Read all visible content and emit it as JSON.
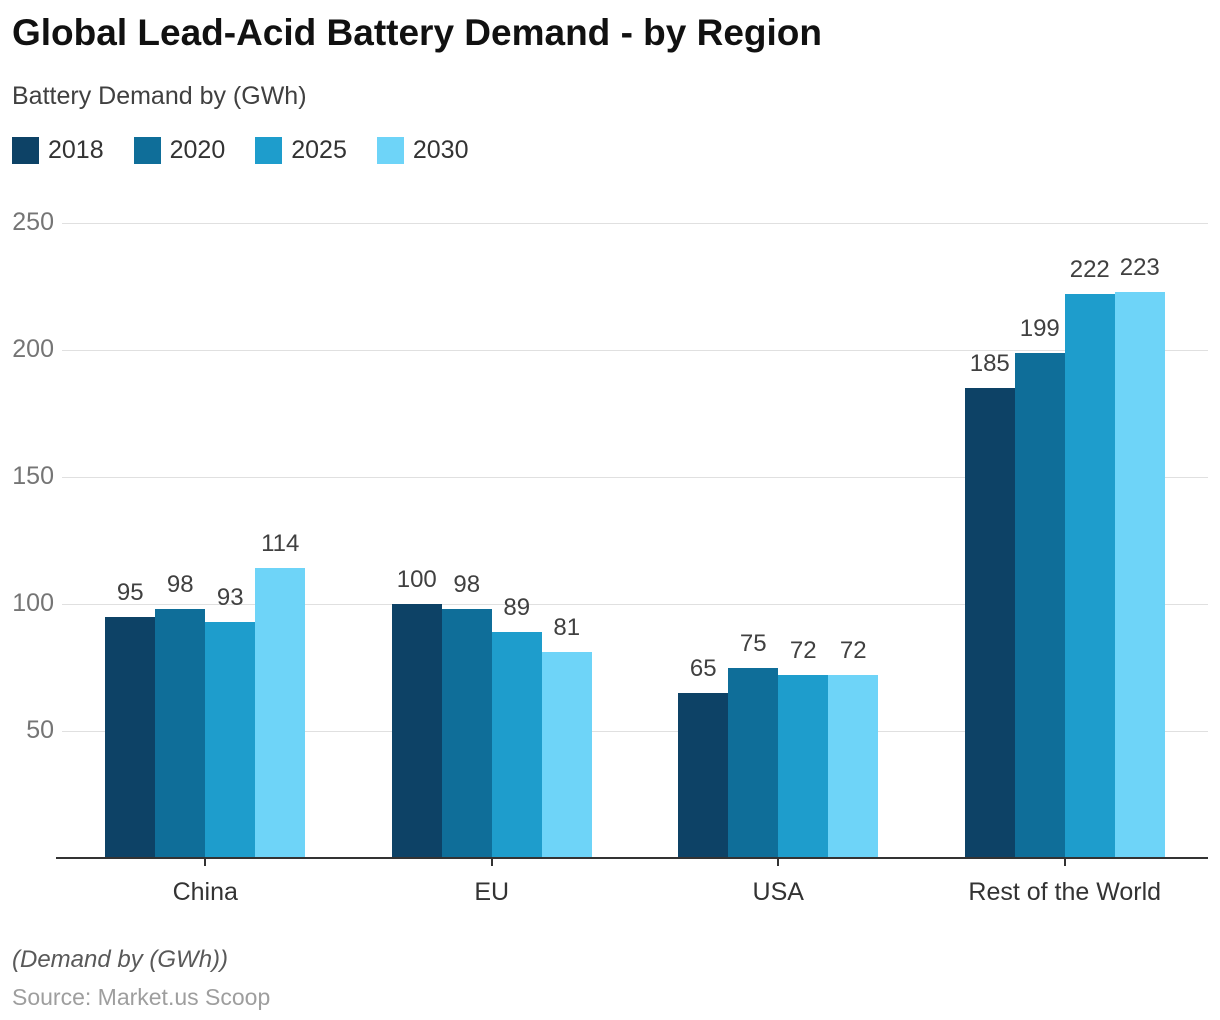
{
  "header": {
    "title": "Global Lead-Acid Battery Demand - by Region",
    "subtitle": "Battery Demand by (GWh)"
  },
  "chart_data": {
    "type": "bar",
    "title": "Global Lead-Acid Battery Demand - by Region",
    "subtitle": "Battery Demand by (GWh)",
    "categories": [
      "China",
      "EU",
      "USA",
      "Rest of the World"
    ],
    "series": [
      {
        "name": "2018",
        "color": "#0d4266",
        "values": [
          95,
          100,
          65,
          185
        ]
      },
      {
        "name": "2020",
        "color": "#0f6e99",
        "values": [
          98,
          98,
          75,
          199
        ]
      },
      {
        "name": "2025",
        "color": "#1e9dcc",
        "values": [
          93,
          89,
          72,
          222
        ]
      },
      {
        "name": "2030",
        "color": "#6ed4f8",
        "values": [
          114,
          81,
          72,
          223
        ]
      }
    ],
    "ylabel": "",
    "xlabel": "",
    "ylim": [
      0,
      250
    ],
    "yticks": [
      50,
      100,
      150,
      200,
      250
    ],
    "grid": true,
    "legend_position": "top",
    "grid_color": "#e0e0e0",
    "axis_color": "#333333"
  },
  "footer": {
    "note": "(Demand by (GWh))",
    "source": "Source: Market.us Scoop"
  }
}
